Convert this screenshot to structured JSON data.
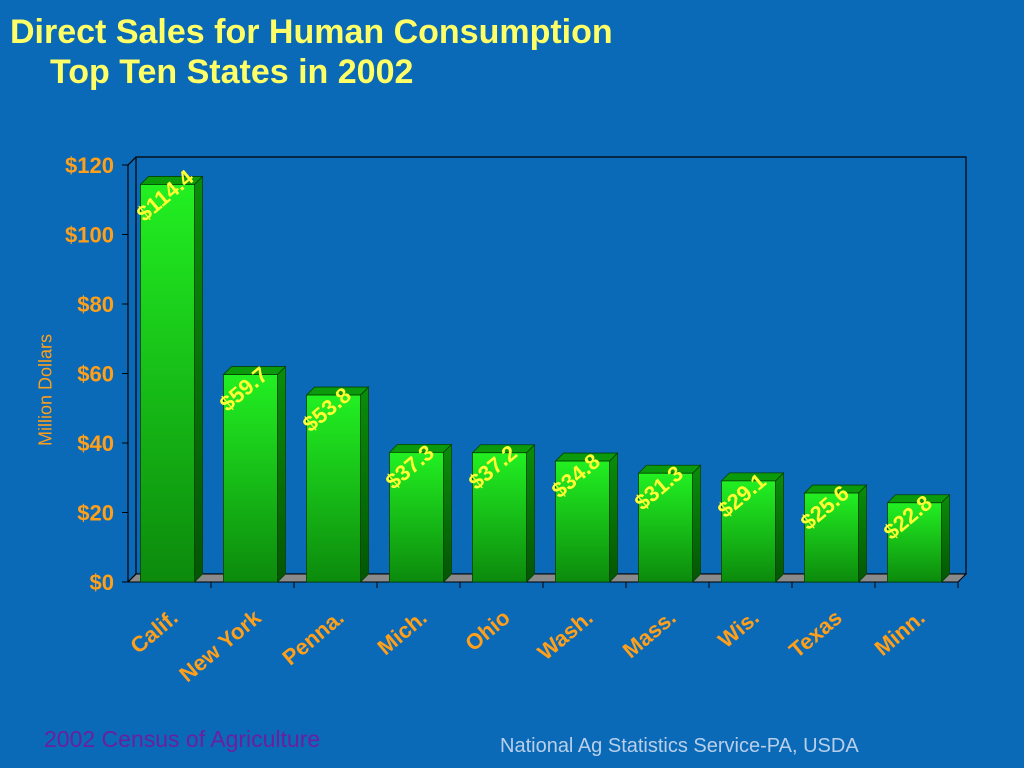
{
  "title": {
    "line1": "Direct Sales for Human Consumption",
    "line2": "Top Ten States in 2002"
  },
  "footer": {
    "source_left": "2002 Census of Agriculture",
    "source_right": "National Ag Statistics Service-PA, USDA"
  },
  "colors": {
    "background": "#0a6ab8",
    "title": "#ffff66",
    "axis_text": "#ff9f1a",
    "bar": "#1ad31a",
    "data_label": "#ffff33"
  },
  "chart_data": {
    "type": "bar",
    "categories": [
      "Calif.",
      "New York",
      "Penna.",
      "Mich.",
      "Ohio",
      "Wash.",
      "Mass.",
      "Wis.",
      "Texas",
      "Minn."
    ],
    "values": [
      114.4,
      59.7,
      53.8,
      37.3,
      37.2,
      34.8,
      31.3,
      29.1,
      25.6,
      22.8
    ],
    "data_labels": [
      "$114.4",
      "$59.7",
      "$53.8",
      "$37.3",
      "$37.2",
      "$34.8",
      "$31.3",
      "$29.1",
      "$25.6",
      "$22.8"
    ],
    "title": "Direct Sales for Human Consumption Top Ten States in 2002",
    "xlabel": "",
    "ylabel": "Million Dollars",
    "ylim": [
      0,
      120
    ],
    "yticks": [
      0,
      20,
      40,
      60,
      80,
      100,
      120
    ],
    "ytick_labels": [
      "$0",
      "$20",
      "$40",
      "$60",
      "$80",
      "$100",
      "$120"
    ],
    "grid": false,
    "legend": "none"
  }
}
